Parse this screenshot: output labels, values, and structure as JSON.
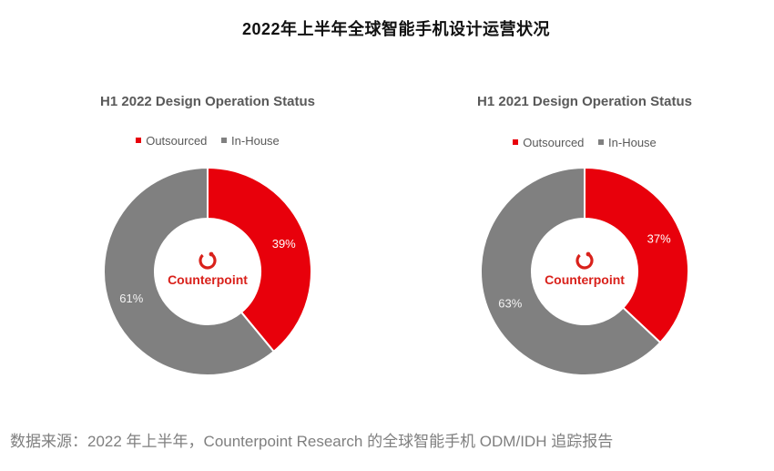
{
  "title": "2022年上半年全球智能手机设计运营状况",
  "source": "数据来源：2022 年上半年，Counterpoint Research 的全球智能手机 ODM/IDH 追踪报告",
  "logo_text": "Counterpoint",
  "colors": {
    "outsourced": "#e8000b",
    "in_house": "#808080",
    "accent": "#d9211b"
  },
  "chart_data": [
    {
      "type": "pie",
      "title": "H1 2022 Design Operation Status",
      "legend": [
        "Outsourced",
        "In-House"
      ],
      "slices": [
        {
          "label": "Outsourced",
          "value": 39,
          "text": "39%"
        },
        {
          "label": "In-House",
          "value": 61,
          "text": "61%"
        }
      ]
    },
    {
      "type": "pie",
      "title": "H1 2021 Design Operation Status",
      "legend": [
        "Outsourced",
        "In-House"
      ],
      "slices": [
        {
          "label": "Outsourced",
          "value": 37,
          "text": "37%"
        },
        {
          "label": "In-House",
          "value": 63,
          "text": "63%"
        }
      ]
    }
  ]
}
